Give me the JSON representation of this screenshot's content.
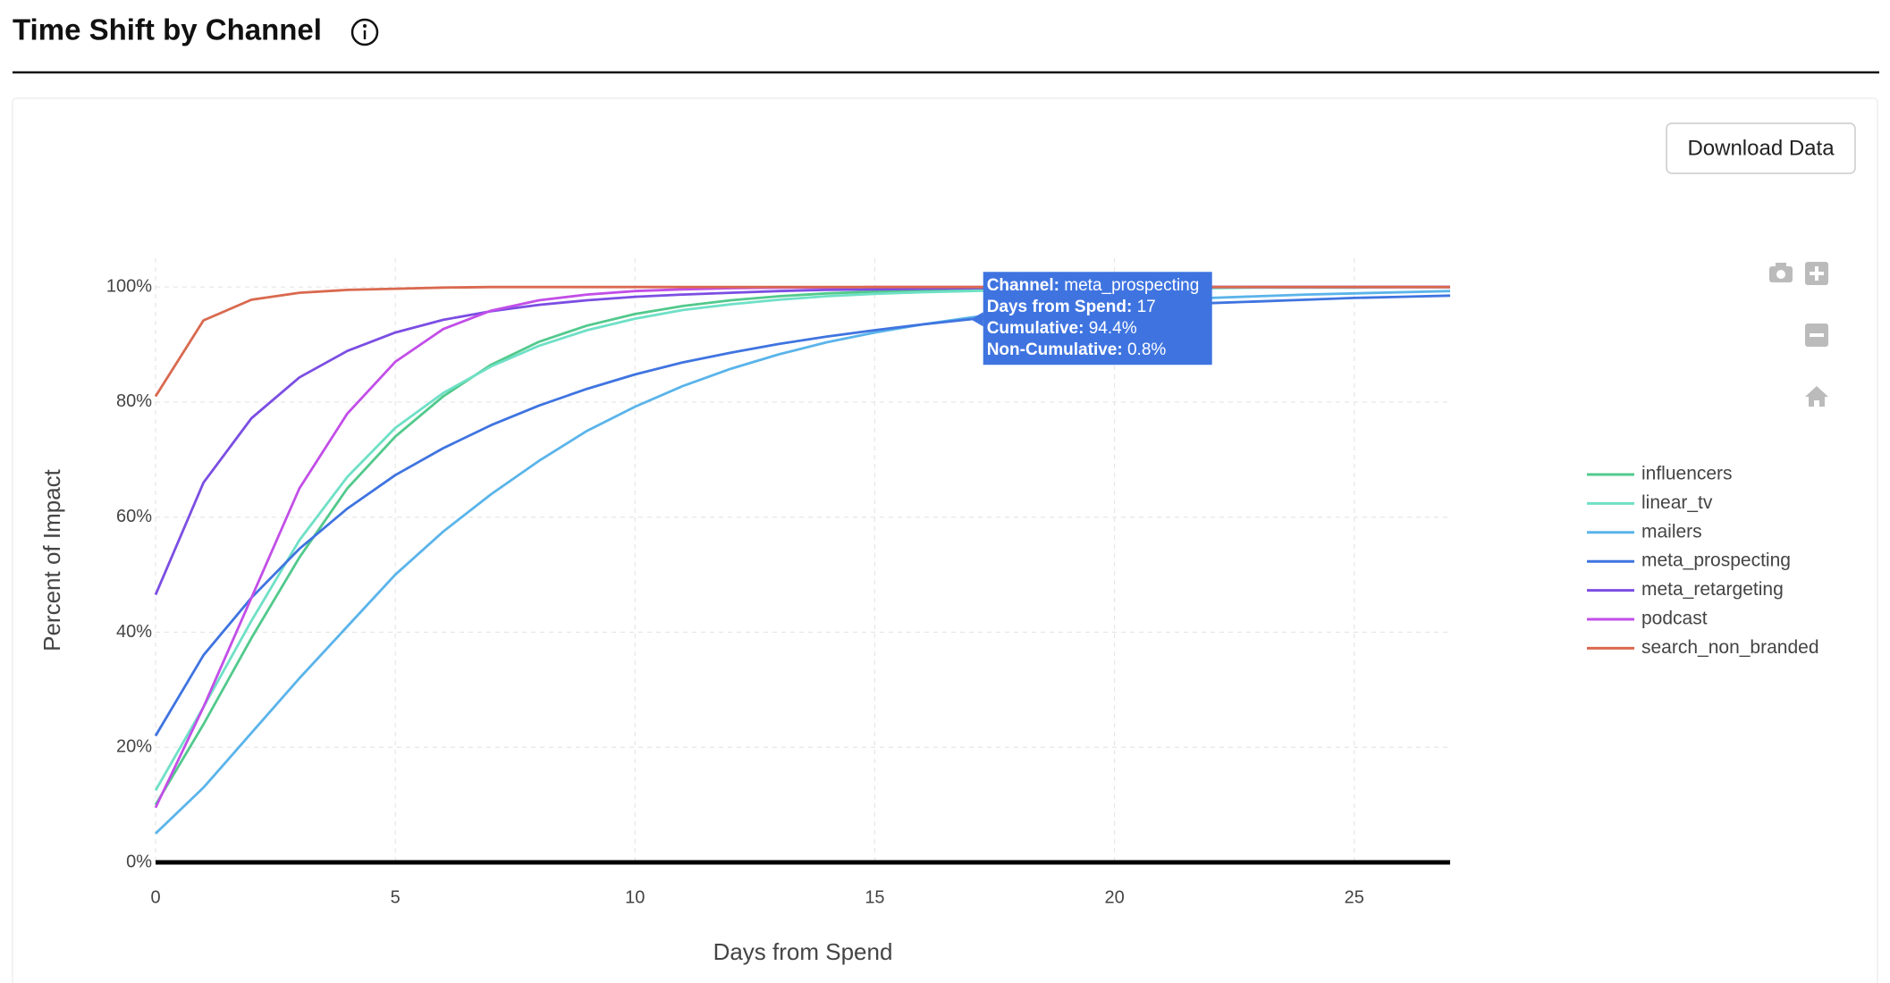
{
  "header": {
    "title": "Time Shift by Channel"
  },
  "download_button": "Download Data",
  "chart_data": {
    "type": "line",
    "x_label": "Days from Spend",
    "y_label": "Percent of Impact",
    "x": [
      0,
      1,
      2,
      3,
      4,
      5,
      6,
      7,
      8,
      9,
      10,
      11,
      12,
      13,
      14,
      15,
      16,
      17,
      18,
      19,
      20,
      21,
      22,
      23,
      24,
      25,
      26,
      27
    ],
    "xlim": [
      0,
      27
    ],
    "xticks": [
      0,
      5,
      10,
      15,
      20,
      25
    ],
    "ylim": [
      0,
      105
    ],
    "yticks": [
      {
        "value": 0,
        "label": "0%"
      },
      {
        "value": 20,
        "label": "20%"
      },
      {
        "value": 40,
        "label": "40%"
      },
      {
        "value": 60,
        "label": "60%"
      },
      {
        "value": 80,
        "label": "80%"
      },
      {
        "value": 100,
        "label": "100%"
      }
    ],
    "grid": true,
    "series": [
      {
        "name": "influencers",
        "color": "#52c98c",
        "values": [
          10,
          24,
          39,
          53,
          65,
          74,
          81,
          86.5,
          90.5,
          93.3,
          95.3,
          96.7,
          97.7,
          98.4,
          98.9,
          99.2,
          99.4,
          99.6,
          99.7,
          99.8,
          99.9,
          99.9,
          100,
          100,
          100,
          100,
          100,
          100
        ]
      },
      {
        "name": "linear_tv",
        "color": "#6fe0c6",
        "values": [
          12.5,
          27,
          42,
          56,
          67,
          75.5,
          81.6,
          86.2,
          89.8,
          92.5,
          94.5,
          96,
          97,
          97.8,
          98.4,
          98.8,
          99.1,
          99.3,
          99.5,
          99.6,
          99.7,
          99.8,
          99.8,
          99.9,
          99.9,
          99.9,
          100,
          100
        ]
      },
      {
        "name": "mailers",
        "color": "#5ab4ea",
        "values": [
          5,
          13,
          22.5,
          32,
          41,
          50,
          57.5,
          64,
          69.8,
          75,
          79.2,
          82.8,
          85.8,
          88.3,
          90.4,
          92.1,
          93.5,
          94.7,
          95.7,
          96.5,
          97.1,
          97.6,
          98.1,
          98.4,
          98.7,
          98.9,
          99.1,
          99.3
        ]
      },
      {
        "name": "meta_prospecting",
        "color": "#3f74e0",
        "values": [
          22,
          36,
          46,
          54.5,
          61.5,
          67.3,
          72,
          76,
          79.4,
          82.3,
          84.8,
          86.9,
          88.6,
          90.1,
          91.4,
          92.5,
          93.5,
          94.4,
          95.1,
          95.8,
          96.3,
          96.8,
          97.2,
          97.5,
          97.8,
          98.1,
          98.3,
          98.5
        ]
      },
      {
        "name": "meta_retargeting",
        "color": "#7b4ee3",
        "values": [
          46.5,
          66,
          77.2,
          84.3,
          88.9,
          92.1,
          94.3,
          95.8,
          96.9,
          97.7,
          98.3,
          98.7,
          99,
          99.3,
          99.5,
          99.6,
          99.7,
          99.8,
          99.9,
          99.9,
          100,
          100,
          100,
          100,
          100,
          100,
          100,
          100
        ]
      },
      {
        "name": "podcast",
        "color": "#c24ee8",
        "values": [
          9.5,
          27,
          46,
          65,
          78,
          87,
          92.7,
          95.9,
          97.7,
          98.7,
          99.3,
          99.6,
          99.8,
          99.9,
          99.9,
          100,
          100,
          100,
          100,
          100,
          100,
          100,
          100,
          100,
          100,
          100,
          100,
          100
        ]
      },
      {
        "name": "search_non_branded",
        "color": "#d9694f",
        "values": [
          81,
          94.2,
          97.8,
          99,
          99.5,
          99.7,
          99.9,
          100,
          100,
          100,
          100,
          100,
          100,
          100,
          100,
          100,
          100,
          100,
          100,
          100,
          100,
          100,
          100,
          100,
          100,
          100,
          100,
          100
        ]
      }
    ],
    "tooltip": {
      "rows": [
        [
          "Channel:",
          "meta_prospecting"
        ],
        [
          "Days from Spend:",
          "17"
        ],
        [
          "Cumulative:",
          "94.4%"
        ],
        [
          "Non-Cumulative:",
          "0.8%"
        ]
      ]
    }
  }
}
